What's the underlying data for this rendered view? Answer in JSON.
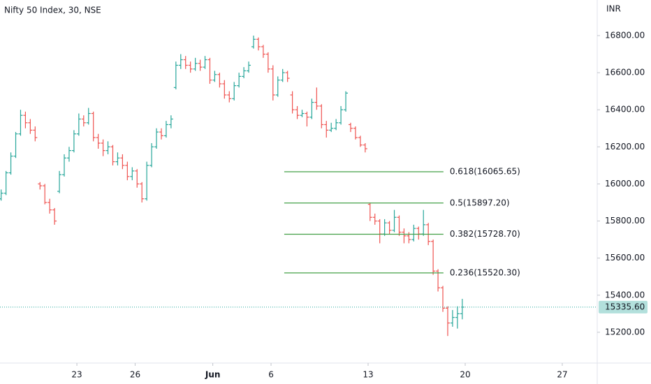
{
  "chart_data": {
    "type": "ohlc",
    "title": "Nifty 50 Index, 30, NSE",
    "currency": "INR",
    "up_color": "#26a69a",
    "down_color": "#ef5350",
    "xlim": [
      -3.96,
      26.8
    ],
    "xticks": [
      {
        "value": 0,
        "label": "23"
      },
      {
        "value": 3,
        "label": "26"
      },
      {
        "value": 7,
        "label": "Jun"
      },
      {
        "value": 10,
        "label": "6"
      },
      {
        "value": 15,
        "label": "13"
      },
      {
        "value": 20,
        "label": "20"
      },
      {
        "value": 25,
        "label": "27"
      }
    ],
    "ylim": [
      15034,
      16992
    ],
    "yticks": [
      {
        "value": 15200,
        "label": "15200.00"
      },
      {
        "value": 15400,
        "label": "15400.00"
      },
      {
        "value": 15600,
        "label": "15600.00"
      },
      {
        "value": 15800,
        "label": "15800.00"
      },
      {
        "value": 16000,
        "label": "16000.00"
      },
      {
        "value": 16200,
        "label": "16200.00"
      },
      {
        "value": 16400,
        "label": "16400.00"
      },
      {
        "value": 16600,
        "label": "16600.00"
      },
      {
        "value": 16800,
        "label": "16800.00"
      }
    ],
    "grid": false,
    "x": [
      -3.9,
      -3.65,
      -3.4,
      -3.15,
      -2.9,
      -2.65,
      -2.4,
      -2.15,
      -1.9,
      -1.65,
      -1.4,
      -1.15,
      -0.9,
      -0.65,
      -0.4,
      -0.15,
      0.1,
      0.35,
      0.6,
      0.85,
      1.1,
      1.35,
      1.6,
      1.85,
      2.1,
      2.35,
      2.6,
      2.85,
      3.1,
      3.35,
      3.6,
      3.85,
      4.1,
      4.35,
      4.6,
      4.85,
      5.1,
      5.35,
      5.6,
      5.85,
      6.1,
      6.35,
      6.6,
      6.85,
      7.1,
      7.35,
      7.6,
      7.85,
      8.1,
      8.35,
      8.6,
      8.85,
      9.1,
      9.35,
      9.6,
      9.85,
      10.1,
      10.35,
      10.6,
      10.85,
      11.1,
      11.35,
      11.6,
      11.85,
      12.1,
      12.35,
      12.6,
      12.85,
      13.1,
      13.35,
      13.6,
      13.85,
      14.1,
      14.35,
      14.6,
      14.85,
      15.1,
      15.35,
      15.6,
      15.85,
      16.1,
      16.35,
      16.6,
      16.85,
      17.1,
      17.35,
      17.6,
      17.85,
      18.1,
      18.35,
      18.6,
      18.85,
      19.1,
      19.35,
      19.6,
      19.85
    ],
    "ohlc": [
      [
        15920,
        15970,
        15910,
        15950
      ],
      [
        15950,
        16070,
        15940,
        16060
      ],
      [
        16060,
        16170,
        16050,
        16150
      ],
      [
        16150,
        16280,
        16140,
        16270
      ],
      [
        16270,
        16400,
        16260,
        16370
      ],
      [
        16370,
        16390,
        16300,
        16330
      ],
      [
        16330,
        16350,
        16270,
        16290
      ],
      [
        16290,
        16310,
        16230,
        16250
      ],
      [
        16000,
        16010,
        15970,
        15990
      ],
      [
        15990,
        16000,
        15890,
        15900
      ],
      [
        15900,
        15920,
        15840,
        15860
      ],
      [
        15860,
        15870,
        15780,
        15800
      ],
      [
        15960,
        16070,
        15950,
        16050
      ],
      [
        16050,
        16160,
        16040,
        16140
      ],
      [
        16140,
        16200,
        16120,
        16180
      ],
      [
        16180,
        16290,
        16170,
        16270
      ],
      [
        16270,
        16380,
        16260,
        16350
      ],
      [
        16350,
        16370,
        16310,
        16330
      ],
      [
        16330,
        16410,
        16320,
        16380
      ],
      [
        16380,
        16390,
        16230,
        16250
      ],
      [
        16250,
        16270,
        16190,
        16220
      ],
      [
        16220,
        16240,
        16150,
        16180
      ],
      [
        16180,
        16230,
        16160,
        16200
      ],
      [
        16200,
        16210,
        16100,
        16120
      ],
      [
        16120,
        16170,
        16100,
        16140
      ],
      [
        16140,
        16160,
        16080,
        16100
      ],
      [
        16100,
        16120,
        16020,
        16040
      ],
      [
        16040,
        16090,
        16020,
        16070
      ],
      [
        16070,
        16080,
        15980,
        16000
      ],
      [
        16000,
        16010,
        15900,
        15920
      ],
      [
        15920,
        16120,
        15910,
        16100
      ],
      [
        16100,
        16220,
        16090,
        16200
      ],
      [
        16200,
        16300,
        16190,
        16280
      ],
      [
        16280,
        16300,
        16240,
        16260
      ],
      [
        16260,
        16340,
        16250,
        16320
      ],
      [
        16320,
        16370,
        16300,
        16350
      ],
      [
        16520,
        16660,
        16510,
        16640
      ],
      [
        16640,
        16700,
        16620,
        16670
      ],
      [
        16670,
        16690,
        16620,
        16640
      ],
      [
        16640,
        16660,
        16600,
        16620
      ],
      [
        16620,
        16680,
        16610,
        16650
      ],
      [
        16650,
        16670,
        16610,
        16630
      ],
      [
        16630,
        16690,
        16620,
        16670
      ],
      [
        16670,
        16680,
        16540,
        16560
      ],
      [
        16560,
        16610,
        16550,
        16590
      ],
      [
        16590,
        16600,
        16520,
        16540
      ],
      [
        16540,
        16560,
        16460,
        16480
      ],
      [
        16480,
        16500,
        16440,
        16460
      ],
      [
        16460,
        16550,
        16450,
        16530
      ],
      [
        16530,
        16600,
        16520,
        16580
      ],
      [
        16580,
        16630,
        16570,
        16610
      ],
      [
        16610,
        16660,
        16600,
        16640
      ],
      [
        16740,
        16800,
        16730,
        16780
      ],
      [
        16780,
        16790,
        16720,
        16740
      ],
      [
        16740,
        16750,
        16680,
        16700
      ],
      [
        16700,
        16710,
        16600,
        16620
      ],
      [
        16620,
        16640,
        16450,
        16480
      ],
      [
        16480,
        16580,
        16470,
        16560
      ],
      [
        16560,
        16620,
        16550,
        16600
      ],
      [
        16600,
        16610,
        16550,
        16570
      ],
      [
        16480,
        16500,
        16380,
        16400
      ],
      [
        16400,
        16420,
        16350,
        16370
      ],
      [
        16370,
        16400,
        16360,
        16380
      ],
      [
        16380,
        16390,
        16310,
        16360
      ],
      [
        16360,
        16460,
        16350,
        16440
      ],
      [
        16440,
        16520,
        16400,
        16420
      ],
      [
        16420,
        16430,
        16300,
        16320
      ],
      [
        16320,
        16340,
        16250,
        16290
      ],
      [
        16290,
        16330,
        16280,
        16300
      ],
      [
        16300,
        16350,
        16290,
        16330
      ],
      [
        16330,
        16420,
        16320,
        16400
      ],
      [
        16400,
        16500,
        16390,
        16490
      ],
      [
        16320,
        16330,
        16280,
        16300
      ],
      [
        16300,
        16310,
        16240,
        16250
      ],
      [
        16250,
        16260,
        16200,
        16210
      ],
      [
        16210,
        16220,
        16170,
        16190
      ],
      [
        15890,
        15900,
        15800,
        15820
      ],
      [
        15820,
        15840,
        15780,
        15800
      ],
      [
        15800,
        15810,
        15680,
        15730
      ],
      [
        15730,
        15810,
        15720,
        15790
      ],
      [
        15790,
        15800,
        15730,
        15750
      ],
      [
        15750,
        15860,
        15740,
        15820
      ],
      [
        15820,
        15830,
        15720,
        15740
      ],
      [
        15740,
        15760,
        15680,
        15720
      ],
      [
        15720,
        15740,
        15680,
        15700
      ],
      [
        15700,
        15780,
        15690,
        15760
      ],
      [
        15760,
        15770,
        15700,
        15730
      ],
      [
        15730,
        15860,
        15720,
        15780
      ],
      [
        15780,
        15790,
        15670,
        15690
      ],
      [
        15690,
        15700,
        15510,
        15530
      ],
      [
        15530,
        15540,
        15420,
        15440
      ],
      [
        15440,
        15450,
        15310,
        15330
      ],
      [
        15330,
        15340,
        15180,
        15250
      ],
      [
        15250,
        15320,
        15230,
        15280
      ],
      [
        15280,
        15340,
        15220,
        15300
      ],
      [
        15300,
        15380,
        15270,
        15335.6
      ]
    ],
    "last_price": {
      "value": 15335.6,
      "label": "15335.60",
      "color": "#26a69a"
    },
    "fib_color": "#43a047",
    "fib_x": [
      10.68,
      18.88
    ],
    "fib_levels": [
      {
        "value": 16065.65,
        "label": "0.618(16065.65)"
      },
      {
        "value": 15897.2,
        "label": "0.5(15897.20)"
      },
      {
        "value": 15728.7,
        "label": "0.382(15728.70)"
      },
      {
        "value": 15520.3,
        "label": "0.236(15520.30)"
      }
    ]
  }
}
